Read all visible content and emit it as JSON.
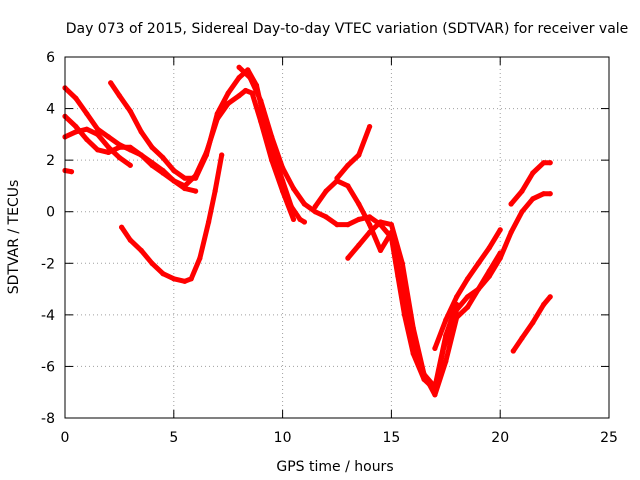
{
  "chart_data": {
    "type": "scatter",
    "title": "Day 073 of 2015, Sidereal Day-to-day VTEC variation (SDTVAR) for receiver vale",
    "xlabel": "GPS time / hours",
    "ylabel": "SDTVAR / TECUs",
    "xlim": [
      0,
      25
    ],
    "ylim": [
      -8,
      6
    ],
    "xticks": [
      0,
      5,
      10,
      15,
      20,
      25
    ],
    "yticks": [
      -8,
      -6,
      -4,
      -2,
      0,
      2,
      4,
      6
    ],
    "xtick_labels": [
      "0",
      "5",
      "10",
      "15",
      "20",
      "25"
    ],
    "ytick_labels": [
      "-8",
      "-6",
      "-4",
      "-2",
      "0",
      "2",
      "4",
      "6"
    ],
    "grid": true,
    "legend": "none",
    "marker_color": "#ff0000",
    "series": [
      {
        "x": [
          0,
          0.3
        ],
        "y": [
          1.6,
          1.55
        ]
      },
      {
        "x": [
          0,
          0.5,
          1,
          1.5,
          2,
          2.5,
          3,
          3.5,
          4,
          4.5,
          5,
          5.5,
          6,
          6.5,
          7,
          7.5,
          8,
          8.3,
          8.6,
          9,
          9.5,
          10,
          10.5
        ],
        "y": [
          4.8,
          4.4,
          3.8,
          3.2,
          2.9,
          2.6,
          2.4,
          2.2,
          1.9,
          1.6,
          1.2,
          1.0,
          1.4,
          2.3,
          3.6,
          4.2,
          4.5,
          4.7,
          4.6,
          3.5,
          2.0,
          0.8,
          -0.3
        ]
      },
      {
        "x": [
          0,
          0.5,
          1,
          1.5,
          2,
          2.5,
          3,
          3.5,
          4,
          4.5,
          5,
          5.5,
          6
        ],
        "y": [
          3.7,
          3.3,
          2.8,
          2.4,
          2.3,
          2.5,
          2.5,
          2.2,
          1.8,
          1.5,
          1.2,
          0.9,
          0.8
        ]
      },
      {
        "x": [
          0,
          0.5,
          1,
          1.5,
          2,
          2.5,
          3
        ],
        "y": [
          2.9,
          3.1,
          3.2,
          3.0,
          2.5,
          2.1,
          1.8
        ]
      },
      {
        "x": [
          2.1,
          2.5,
          3,
          3.5,
          4,
          4.5,
          5,
          5.5,
          6,
          6.5,
          7,
          7.5,
          8,
          8.4,
          8.8,
          9.2,
          9.6,
          10,
          10.4,
          10.8,
          11
        ],
        "y": [
          5.0,
          4.5,
          3.9,
          3.1,
          2.5,
          2.1,
          1.6,
          1.3,
          1.3,
          2.2,
          3.8,
          4.6,
          5.2,
          5.5,
          4.9,
          3.4,
          2.2,
          1.2,
          0.2,
          -0.3,
          -0.4
        ]
      },
      {
        "x": [
          2.6,
          3,
          3.5,
          4,
          4.5,
          5,
          5.5,
          5.8,
          6.2,
          6.6,
          6.9,
          7.2
        ],
        "y": [
          -0.6,
          -1.1,
          -1.5,
          -2.0,
          -2.4,
          -2.6,
          -2.7,
          -2.6,
          -1.8,
          -0.4,
          0.8,
          2.2
        ]
      },
      {
        "x": [
          8,
          8.5,
          9,
          9.5,
          10,
          10.5,
          11,
          11.5,
          12,
          12.5,
          13,
          13.5,
          14,
          14.5,
          15,
          15.3,
          15.6,
          16,
          16.5,
          17,
          17.4,
          18,
          18.5,
          19,
          19.5,
          20
        ],
        "y": [
          5.6,
          5.2,
          4.3,
          2.9,
          1.7,
          0.9,
          0.3,
          0.0,
          -0.2,
          -0.5,
          -0.5,
          -0.3,
          -0.2,
          -0.5,
          -1.0,
          -2.5,
          -4.0,
          -5.5,
          -6.5,
          -6.9,
          -5.3,
          -3.8,
          -3.3,
          -3.0,
          -2.3,
          -1.6
        ]
      },
      {
        "x": [
          11.5,
          12,
          12.5,
          13,
          13.5,
          14,
          14.5,
          15,
          15.5,
          16,
          16.5,
          17,
          17.5,
          18
        ],
        "y": [
          0.2,
          0.8,
          1.2,
          1.0,
          0.3,
          -0.5,
          -1.5,
          -0.8,
          -3.0,
          -5.2,
          -6.3,
          -6.8,
          -4.8,
          -3.6
        ]
      },
      {
        "x": [
          12.5,
          13,
          13.5,
          14
        ],
        "y": [
          1.3,
          1.8,
          2.2,
          3.3
        ]
      },
      {
        "x": [
          13,
          13.5,
          14,
          14.5,
          15,
          15.5,
          16,
          16.5,
          17,
          17.5,
          18,
          18.5,
          19,
          19.5,
          20,
          20.5,
          21,
          21.5,
          22,
          22.3
        ],
        "y": [
          -1.8,
          -1.3,
          -0.8,
          -0.4,
          -0.5,
          -2.0,
          -4.5,
          -6.3,
          -7.1,
          -5.8,
          -4.1,
          -3.7,
          -3.0,
          -2.5,
          -1.8,
          -0.8,
          0.0,
          0.5,
          0.7,
          0.7
        ]
      },
      {
        "x": [
          17,
          17.5,
          18,
          18.5,
          19,
          19.5,
          20
        ],
        "y": [
          -5.3,
          -4.2,
          -3.3,
          -2.6,
          -2.0,
          -1.4,
          -0.7
        ]
      },
      {
        "x": [
          20.5,
          21,
          21.5,
          22,
          22.3
        ],
        "y": [
          0.3,
          0.8,
          1.5,
          1.9,
          1.9
        ]
      },
      {
        "x": [
          20.6,
          21,
          21.5,
          22,
          22.3
        ],
        "y": [
          -5.4,
          -4.9,
          -4.3,
          -3.6,
          -3.3
        ]
      }
    ]
  }
}
